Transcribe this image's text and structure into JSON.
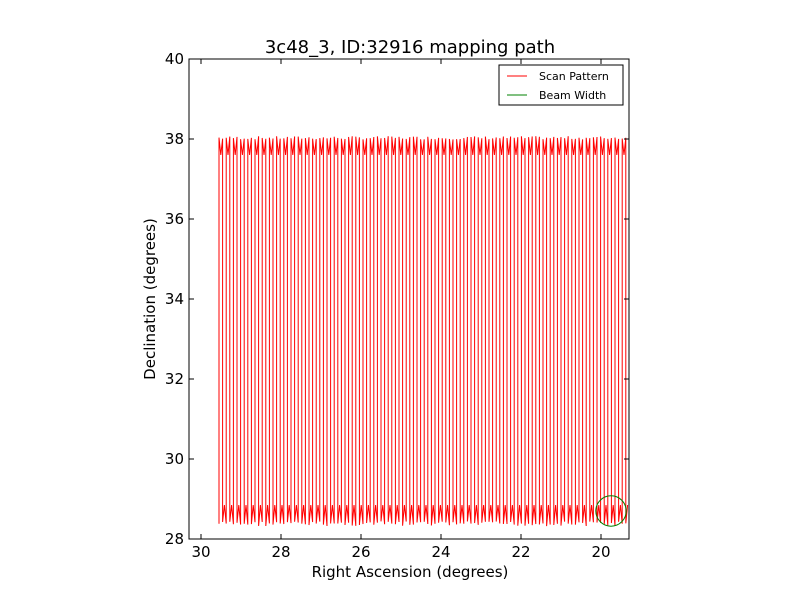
{
  "chart_data": {
    "type": "line",
    "title": "3c48_3, ID:32916 mapping path",
    "xlabel": "Right Ascension (degrees)",
    "ylabel": "Declination (degrees)",
    "xlim": [
      30.3,
      19.3
    ],
    "ylim": [
      28,
      40
    ],
    "x_inverted": true,
    "xticks": [
      30,
      28,
      26,
      24,
      22,
      20
    ],
    "yticks": [
      28,
      30,
      32,
      34,
      36,
      38,
      40
    ],
    "xtick_labels": [
      "30",
      "28",
      "26",
      "24",
      "22",
      "20"
    ],
    "ytick_labels": [
      "28",
      "30",
      "32",
      "34",
      "36",
      "38",
      "40"
    ],
    "grid": false,
    "legend_position": "top-right",
    "series": [
      {
        "name": "Scan Pattern",
        "color": "#ff0000",
        "pattern": "boustrophedon",
        "ra_start": 29.55,
        "ra_end": 19.35,
        "ra_step": 0.09,
        "dec_low": 28.5,
        "dec_high": 37.95,
        "dec_overshoot": 0.2
      },
      {
        "name": "Beam Width",
        "color": "#008000",
        "shape": "circle",
        "center": [
          19.75,
          28.7
        ],
        "radius_deg": 0.38
      }
    ]
  }
}
